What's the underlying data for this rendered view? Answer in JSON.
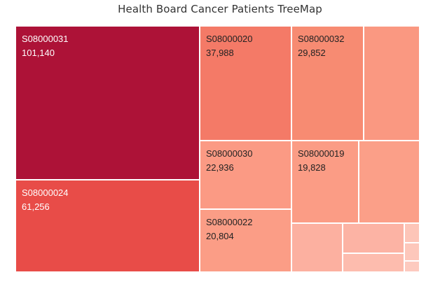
{
  "title": "Health Board Cancer Patients TreeMap",
  "chart_data": {
    "type": "treemap",
    "title": "Health Board Cancer Patients TreeMap",
    "items": [
      {
        "name": "S08000031",
        "value": 101140,
        "display_value": "101,140",
        "color": "#ad1237",
        "labeled": true
      },
      {
        "name": "S08000024",
        "value": 61256,
        "display_value": "61,256",
        "color": "#e84c48",
        "labeled": true
      },
      {
        "name": "S08000020",
        "value": 37988,
        "display_value": "37,988",
        "color": "#f47a67",
        "labeled": true
      },
      {
        "name": "S08000032",
        "value": 29852,
        "display_value": "29,852",
        "color": "#f78b72",
        "labeled": true
      },
      {
        "name": "",
        "value": 19900,
        "color": "#fa9881",
        "labeled": false
      },
      {
        "name": "S08000030",
        "value": 22936,
        "display_value": "22,936",
        "color": "#fb9a84",
        "labeled": true
      },
      {
        "name": "S08000019",
        "value": 19828,
        "display_value": "19,828",
        "color": "#fb9c85",
        "labeled": true
      },
      {
        "name": "",
        "value": 14600,
        "color": "#fb9f88",
        "labeled": false
      },
      {
        "name": "S08000022",
        "value": 20804,
        "display_value": "20,804",
        "color": "#fb9d86",
        "labeled": true
      },
      {
        "name": "",
        "value": 11000,
        "color": "#fcb0a0",
        "labeled": false
      },
      {
        "name": "",
        "value": 6900,
        "color": "#fcb3a4",
        "labeled": false
      },
      {
        "name": "",
        "value": 4000,
        "color": "#fdbcae",
        "labeled": false
      },
      {
        "name": "",
        "value": 1100,
        "color": "#fdc5b8",
        "labeled": false
      },
      {
        "name": "",
        "value": 1000,
        "color": "#fdc7bb",
        "labeled": false
      },
      {
        "name": "",
        "value": 600,
        "color": "#fdcabf",
        "labeled": false
      }
    ]
  }
}
